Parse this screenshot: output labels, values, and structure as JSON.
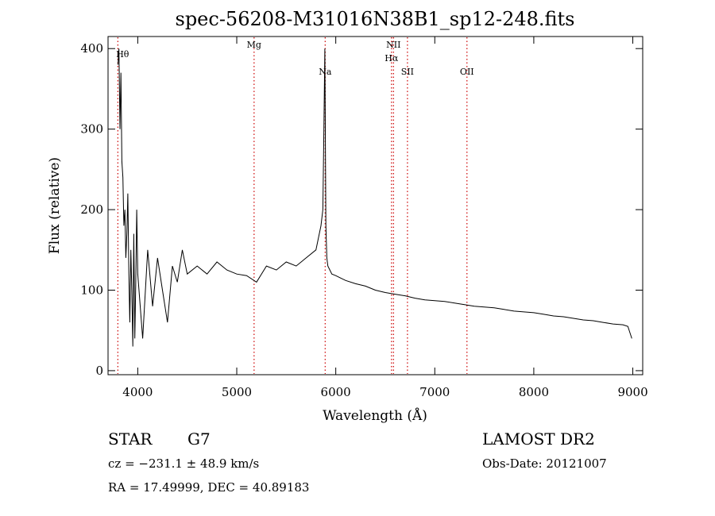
{
  "chart_data": {
    "type": "line",
    "title": "spec-56208-M31016N38B1_sp12-248.fits",
    "xlabel": "Wavelength (Å)",
    "ylabel": "Flux (relative)",
    "xlim": [
      3700,
      9100
    ],
    "ylim": [
      -5,
      415
    ],
    "xticks": [
      4000,
      5000,
      6000,
      7000,
      8000,
      9000
    ],
    "yticks": [
      0,
      100,
      200,
      300,
      400
    ],
    "grid": false,
    "line_color": "#000000",
    "marker_color": "#cc0000",
    "series": [
      {
        "x": [
          3800,
          3810,
          3820,
          3830,
          3840,
          3850,
          3860,
          3870,
          3880,
          3890,
          3900,
          3910,
          3920,
          3930,
          3940,
          3950,
          3960,
          3970,
          3980,
          3990,
          4000,
          4050,
          4100,
          4150,
          4200,
          4250,
          4300,
          4350,
          4400,
          4450,
          4500,
          4600,
          4700,
          4800,
          4900,
          5000,
          5100,
          5200,
          5300,
          5400,
          5500,
          5600,
          5700,
          5800,
          5850,
          5870,
          5880,
          5890,
          5895,
          5900,
          5910,
          5920,
          5940,
          5960,
          6000,
          6050,
          6100,
          6200,
          6300,
          6400,
          6500,
          6600,
          6700,
          6800,
          6900,
          7000,
          7100,
          7200,
          7300,
          7400,
          7500,
          7600,
          7700,
          7800,
          7900,
          8000,
          8100,
          8200,
          8300,
          8400,
          8500,
          8600,
          8700,
          8800,
          8900,
          8950,
          8990
        ],
        "y": [
          380,
          400,
          300,
          370,
          260,
          240,
          180,
          200,
          140,
          170,
          220,
          120,
          60,
          150,
          100,
          30,
          170,
          40,
          110,
          200,
          120,
          40,
          150,
          80,
          140,
          100,
          60,
          130,
          110,
          150,
          120,
          130,
          120,
          135,
          125,
          120,
          118,
          110,
          130,
          125,
          135,
          130,
          140,
          150,
          180,
          200,
          300,
          400,
          280,
          180,
          140,
          130,
          125,
          120,
          118,
          115,
          112,
          108,
          105,
          100,
          97,
          95,
          93,
          90,
          88,
          87,
          86,
          84,
          82,
          80,
          79,
          78,
          76,
          74,
          73,
          72,
          70,
          68,
          67,
          65,
          63,
          62,
          60,
          58,
          57,
          55,
          40
        ]
      }
    ],
    "lines": [
      {
        "label": "Hθ",
        "x": 3799
      },
      {
        "label": "Mg",
        "x": 5175
      },
      {
        "label": "Na",
        "x": 5893
      },
      {
        "label": "NII",
        "x": 6583
      },
      {
        "label": "Hα",
        "x": 6563
      },
      {
        "label": "SII",
        "x": 6724
      },
      {
        "label": "OII",
        "x": 7325
      }
    ]
  },
  "info": {
    "class_label": "STAR",
    "subclass": "G7",
    "survey": "LAMOST DR2",
    "redshift_text": "cz = −231.1 ± 48.9 km/s",
    "obs_date": "Obs-Date: 20121007",
    "coords": "RA =  17.49999, DEC =  40.89183"
  }
}
